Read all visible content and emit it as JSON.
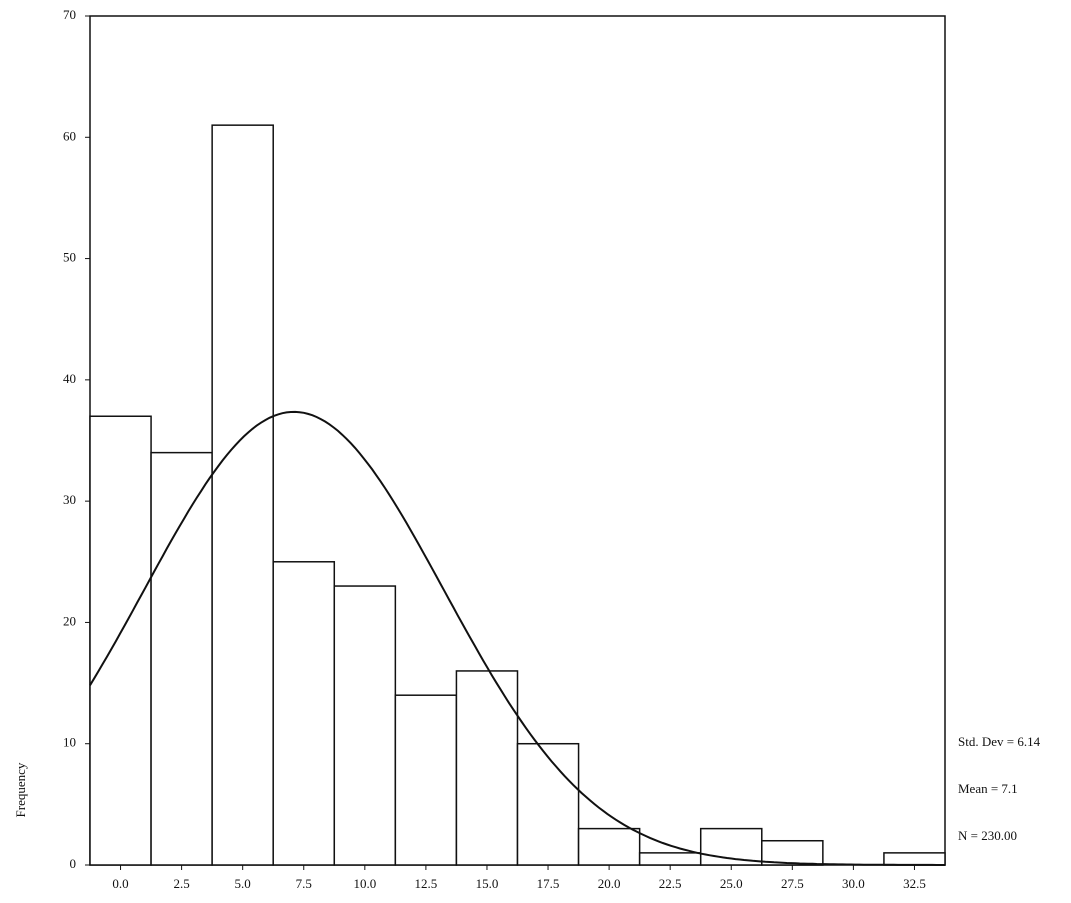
{
  "chart_data": {
    "type": "histogram",
    "y_label": "Frequency",
    "bins": [
      -1.25,
      1.25,
      3.75,
      6.25,
      8.75,
      11.25,
      13.75,
      16.25,
      18.75,
      21.25,
      23.75,
      26.25,
      28.75,
      31.25,
      33.75
    ],
    "values": [
      37,
      34,
      61,
      25,
      23,
      14,
      16,
      10,
      3,
      1,
      3,
      2,
      0,
      1
    ],
    "xlim": [
      -1.25,
      33.75
    ],
    "xticks": [
      {
        "value": 0,
        "label": "0.0"
      },
      2.5,
      {
        "value": 5,
        "label": "5.0"
      },
      7.5,
      {
        "value": 10,
        "label": "10.0"
      },
      12.5,
      {
        "value": 15,
        "label": "15.0"
      },
      17.5,
      {
        "value": 20,
        "label": "20.0"
      },
      22.5,
      {
        "value": 25,
        "label": "25.0"
      },
      27.5,
      {
        "value": 30,
        "label": "30.0"
      },
      32.5
    ],
    "ylim": [
      0,
      70
    ],
    "yticks": [
      0,
      10,
      20,
      30,
      40,
      50,
      60,
      70
    ],
    "normal_curve": true,
    "stats": [
      {
        "value": 6.14,
        "label": "Std. Dev = 6.14"
      },
      {
        "value": 7.1,
        "label": "Mean = 7.1"
      },
      {
        "value": 230,
        "label": "N = 230.00"
      }
    ]
  }
}
